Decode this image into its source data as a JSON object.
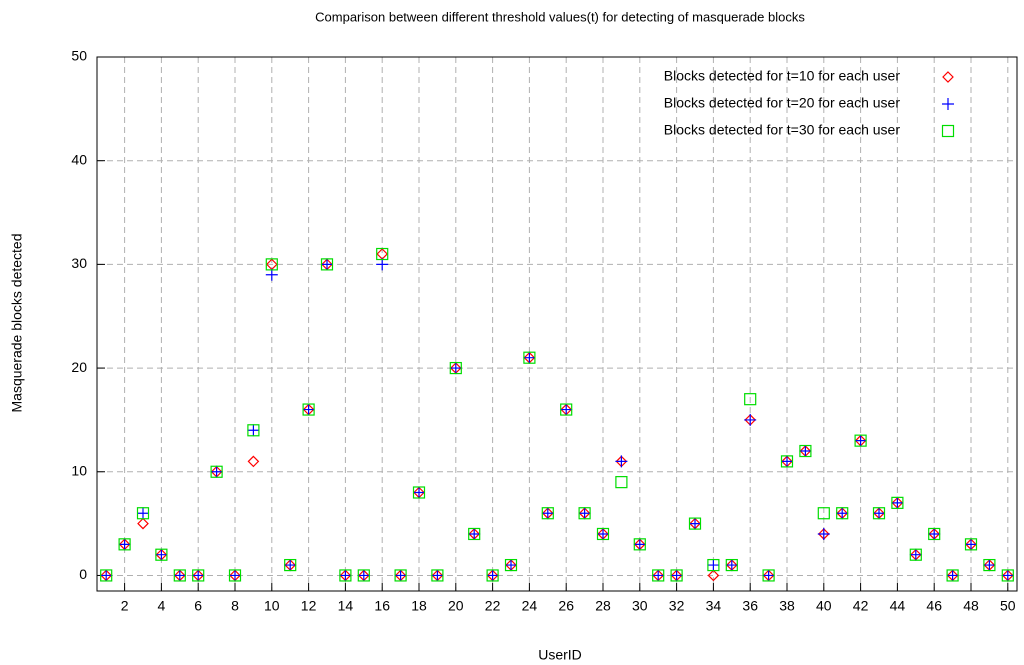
{
  "chart_data": {
    "type": "scatter",
    "title": "Comparison between different threshold values(t) for detecting of masquerade blocks",
    "x_label": "UserID",
    "y_label": "Masquerade blocks detected",
    "x": [
      1,
      2,
      3,
      4,
      5,
      6,
      7,
      8,
      9,
      10,
      11,
      12,
      13,
      14,
      15,
      16,
      17,
      18,
      19,
      20,
      21,
      22,
      23,
      24,
      25,
      26,
      27,
      28,
      29,
      30,
      31,
      32,
      33,
      34,
      35,
      36,
      37,
      38,
      39,
      40,
      41,
      42,
      43,
      44,
      45,
      46,
      47,
      48,
      49,
      50
    ],
    "series": [
      {
        "name": "Blocks detected for t=10 for each user",
        "color": "#ff0000",
        "marker": "diamond",
        "values": [
          0,
          3,
          5,
          2,
          0,
          0,
          10,
          0,
          11,
          30,
          1,
          16,
          30,
          0,
          0,
          31,
          0,
          8,
          0,
          20,
          4,
          0,
          1,
          21,
          6,
          16,
          6,
          4,
          11,
          3,
          0,
          0,
          5,
          0,
          1,
          15,
          0,
          11,
          12,
          4,
          6,
          13,
          6,
          7,
          2,
          4,
          0,
          3,
          1,
          0
        ]
      },
      {
        "name": "Blocks detected for t=20 for each user",
        "color": "#0000ff",
        "marker": "plus",
        "values": [
          0,
          3,
          6,
          2,
          0,
          0,
          10,
          0,
          14,
          29,
          1,
          16,
          30,
          0,
          0,
          30,
          0,
          8,
          0,
          20,
          4,
          0,
          1,
          21,
          6,
          16,
          6,
          4,
          11,
          3,
          0,
          0,
          5,
          1,
          1,
          15,
          0,
          11,
          12,
          4,
          6,
          13,
          6,
          7,
          2,
          4,
          0,
          3,
          1,
          0
        ]
      },
      {
        "name": "Blocks detected for t=30 for each user",
        "color": "#00dd00",
        "marker": "square",
        "values": [
          0,
          3,
          6,
          2,
          0,
          0,
          10,
          0,
          14,
          30,
          1,
          16,
          30,
          0,
          0,
          31,
          0,
          8,
          0,
          20,
          4,
          0,
          1,
          21,
          6,
          16,
          6,
          4,
          9,
          3,
          0,
          0,
          5,
          1,
          1,
          17,
          0,
          11,
          12,
          6,
          6,
          13,
          6,
          7,
          2,
          4,
          0,
          3,
          1,
          0
        ]
      }
    ],
    "xlim": [
      0.5,
      50.5
    ],
    "xticks": [
      2,
      4,
      6,
      8,
      10,
      12,
      14,
      16,
      18,
      20,
      22,
      24,
      26,
      28,
      30,
      32,
      34,
      36,
      38,
      40,
      42,
      44,
      46,
      48,
      50
    ],
    "ylim": [
      -1.5,
      50
    ],
    "yticks": [
      0,
      10,
      20,
      30,
      40,
      50
    ],
    "grid": true,
    "legend": "top-right"
  }
}
